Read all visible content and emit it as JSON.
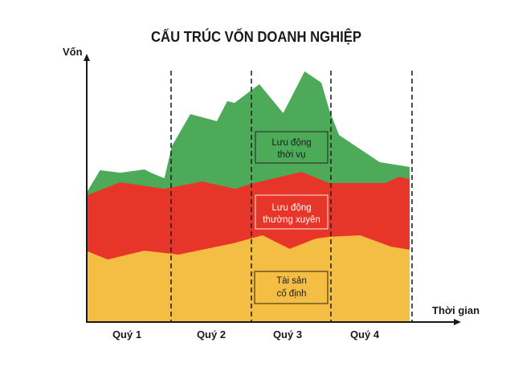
{
  "chart_data": {
    "type": "area",
    "stacked": true,
    "title": "CẤU TRÚC VỐN DOANH NGHIỆP",
    "xlabel": "Thời gian",
    "ylabel": "Vốn",
    "categories": [
      "Quý 1",
      "Quý 2",
      "Quý 3",
      "Quý 4"
    ],
    "xlim": [
      0,
      4
    ],
    "ylim": [
      0,
      100
    ],
    "grid": false,
    "legend": "inline boxed labels inside each band",
    "series": [
      {
        "name": "Tài sản cố định",
        "color": "#f4be45",
        "top_edge": [
          [
            0,
            28.1
          ],
          [
            0.24,
            24.9
          ],
          [
            0.68,
            28.4
          ],
          [
            1.0,
            27.2
          ],
          [
            1.09,
            26.8
          ],
          [
            1.77,
            31.3
          ],
          [
            2.14,
            34.5
          ],
          [
            2.48,
            29.1
          ],
          [
            2.81,
            33.2
          ],
          [
            2.98,
            33.9
          ],
          [
            3.36,
            34.5
          ],
          [
            3.74,
            30.0
          ],
          [
            3.97,
            28.8
          ]
        ]
      },
      {
        "name": "Lưu động thường xuyên",
        "color": "#e8352a",
        "top_edge": [
          [
            0,
            50.5
          ],
          [
            0.39,
            55.6
          ],
          [
            0.92,
            53.0
          ],
          [
            1.39,
            55.9
          ],
          [
            1.8,
            53.0
          ],
          [
            2.0,
            55.0
          ],
          [
            2.63,
            59.7
          ],
          [
            2.98,
            55.3
          ],
          [
            3.67,
            55.3
          ],
          [
            3.84,
            57.8
          ],
          [
            3.97,
            56.9
          ]
        ]
      },
      {
        "name": "Lưu động thời vụ",
        "color": "#4daa59",
        "top_edge": [
          [
            0,
            52.1
          ],
          [
            0.15,
            60.4
          ],
          [
            0.39,
            59.4
          ],
          [
            0.68,
            60.7
          ],
          [
            0.76,
            59.4
          ],
          [
            0.92,
            57.2
          ],
          [
            1.01,
            70.0
          ],
          [
            1.24,
            82.7
          ],
          [
            1.57,
            79.9
          ],
          [
            1.7,
            87.9
          ],
          [
            1.79,
            87.2
          ],
          [
            2.1,
            94.6
          ],
          [
            2.4,
            83.1
          ],
          [
            2.67,
            99.7
          ],
          [
            2.88,
            95.2
          ],
          [
            2.98,
            84.3
          ],
          [
            3.1,
            74.4
          ],
          [
            3.6,
            63.6
          ],
          [
            3.97,
            61.7
          ]
        ]
      }
    ],
    "annotations": [
      {
        "band": "Lưu động thời vụ",
        "lines": [
          "Lưu động",
          "thời vụ"
        ]
      },
      {
        "band": "Lưu động thường xuyên",
        "lines": [
          "Lưu động",
          "thường xuyên"
        ]
      },
      {
        "band": "Tài sản cố định",
        "lines": [
          "Tài sản",
          "cố định"
        ]
      }
    ]
  }
}
